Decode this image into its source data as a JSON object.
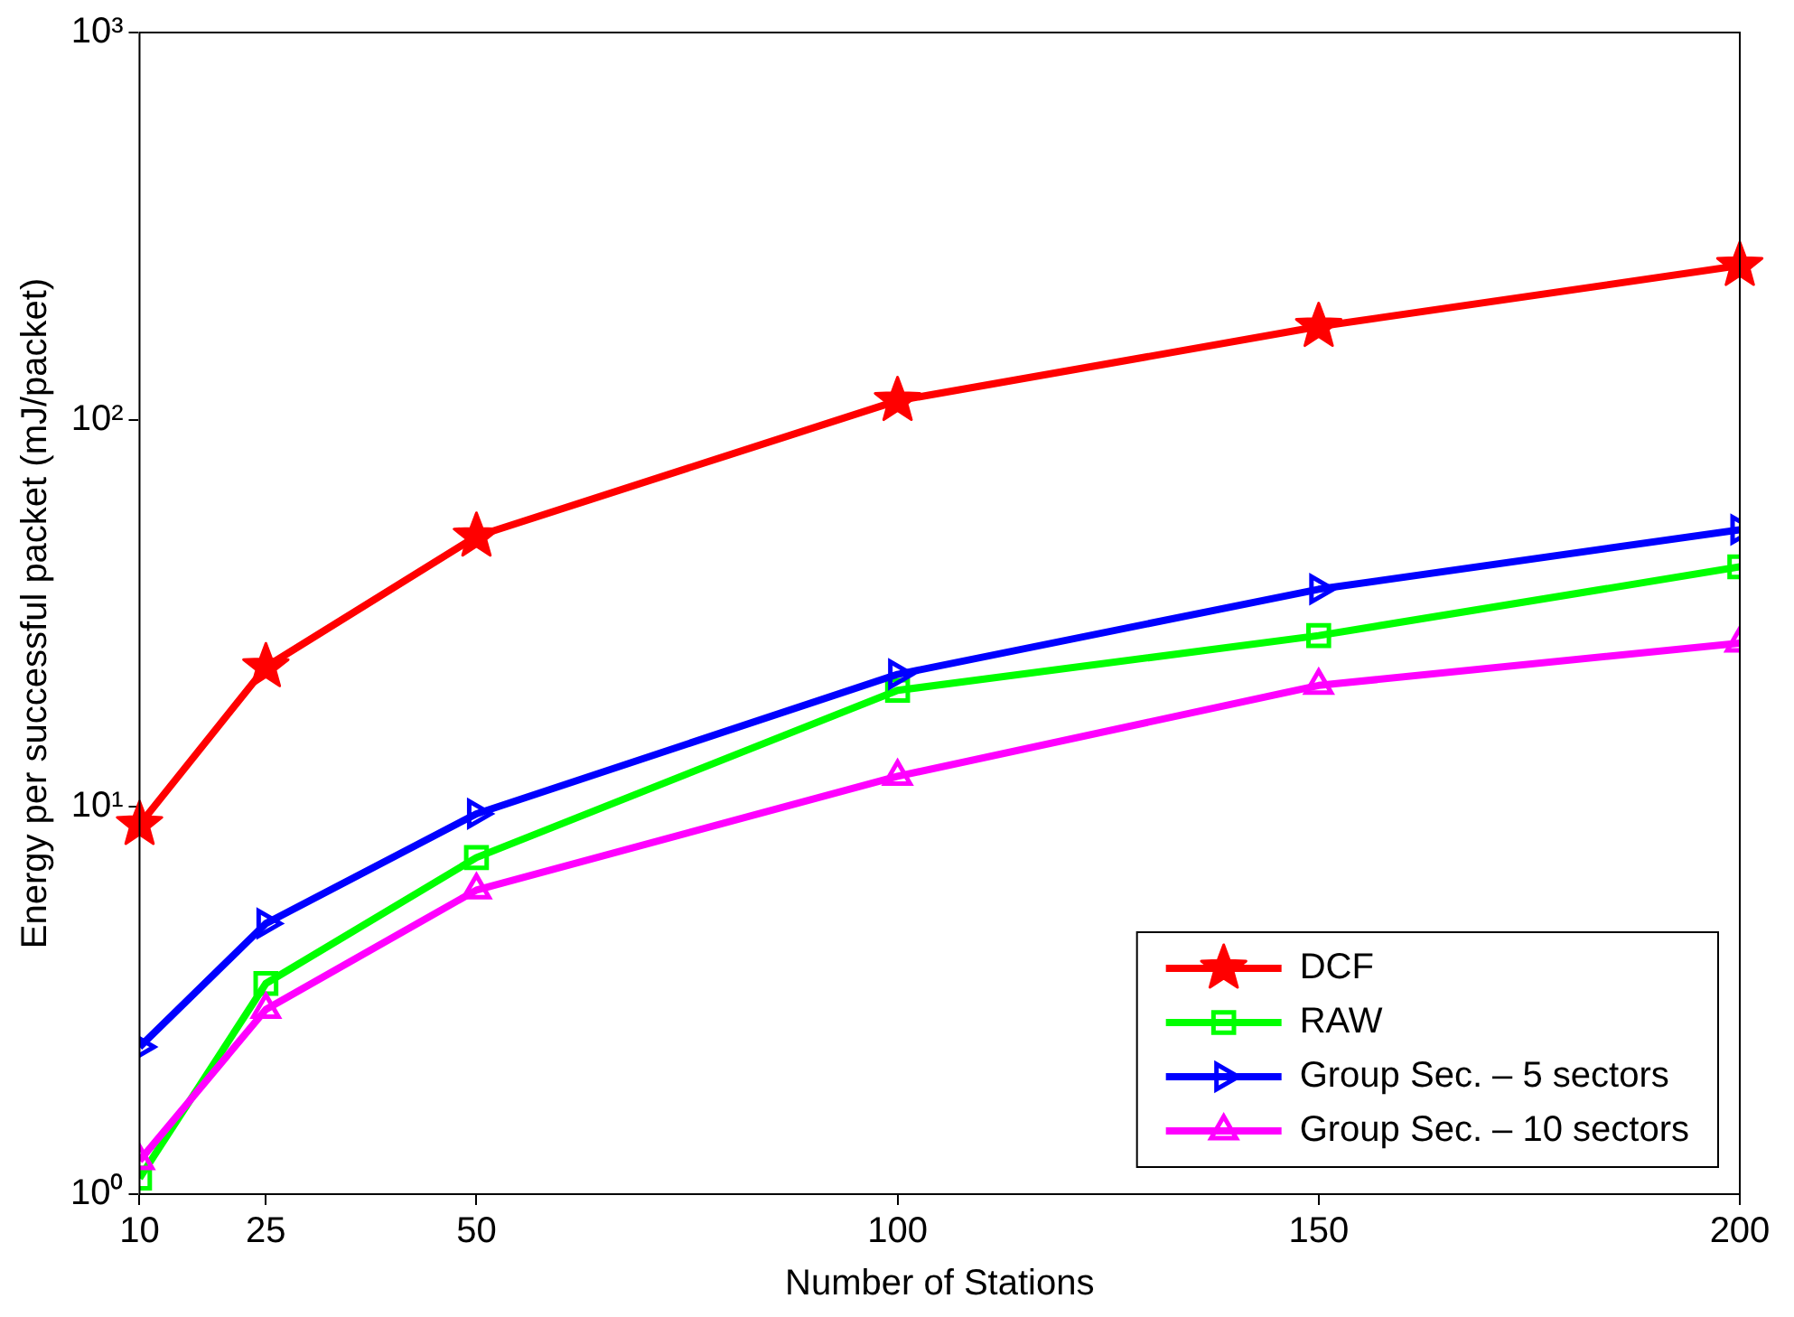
{
  "chart_data": {
    "type": "line",
    "xlabel": "Number of Stations",
    "ylabel": "Energy per successful packet (mJ/packet)",
    "x": [
      10,
      25,
      50,
      100,
      150,
      200
    ],
    "series": [
      {
        "name": "DCF",
        "color": "#ff0000",
        "marker": "star",
        "values": [
          9,
          23,
          50,
          112,
          174,
          250
        ]
      },
      {
        "name": "RAW",
        "color": "#00ff00",
        "marker": "square",
        "values": [
          1.1,
          3.5,
          7.4,
          20,
          27.7,
          41.7
        ]
      },
      {
        "name": "Group Sec. – 5 sectors",
        "color": "#0000ff",
        "marker": "triangle-right",
        "values": [
          2.4,
          5,
          9.6,
          22,
          36.5,
          52
        ]
      },
      {
        "name": "Group Sec. – 10 sectors",
        "color": "#ff00ff",
        "marker": "triangle",
        "values": [
          1.22,
          3,
          6.1,
          12,
          20.6,
          26.5
        ]
      }
    ],
    "xlim": [
      10,
      200
    ],
    "xticks": [
      10,
      25,
      50,
      100,
      150,
      200
    ],
    "ylim": [
      1,
      1000
    ],
    "yticks": [
      {
        "value": 1,
        "label": "10⁰"
      },
      {
        "value": 10,
        "label": "10¹"
      },
      {
        "value": 100,
        "label": "10²"
      },
      {
        "value": 1000,
        "label": "10³"
      }
    ],
    "log": "y",
    "grid": false,
    "legend": "bottom right",
    "line_style": "solid"
  }
}
